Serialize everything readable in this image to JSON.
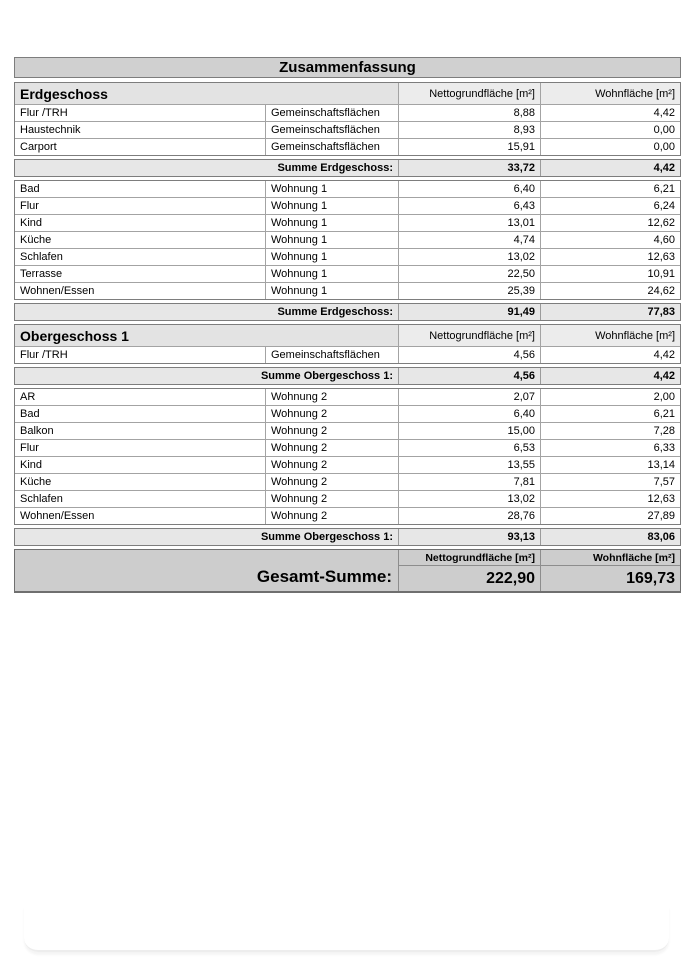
{
  "document": {
    "title": "Zusammenfassung",
    "columns": {
      "netto": "Nettogrundfläche [m²]",
      "wohn": "Wohnfläche [m²]"
    },
    "sections": {
      "eg": {
        "name": "Erdgeschoss",
        "common_rows": [
          [
            "Flur /TRH",
            "Gemeinschaftsflächen",
            "8,88",
            "4,42"
          ],
          [
            "Haustechnik",
            "Gemeinschaftsflächen",
            "8,93",
            "0,00"
          ],
          [
            "Carport",
            "Gemeinschaftsflächen",
            "15,91",
            "0,00"
          ]
        ],
        "sum1": {
          "label": "Summe Erdgeschoss:",
          "netto": "33,72",
          "wohn": "4,42"
        },
        "unit_rows": [
          [
            "Bad",
            "Wohnung 1",
            "6,40",
            "6,21"
          ],
          [
            "Flur",
            "Wohnung 1",
            "6,43",
            "6,24"
          ],
          [
            "Kind",
            "Wohnung 1",
            "13,01",
            "12,62"
          ],
          [
            "Küche",
            "Wohnung 1",
            "4,74",
            "4,60"
          ],
          [
            "Schlafen",
            "Wohnung 1",
            "13,02",
            "12,63"
          ],
          [
            "Terrasse",
            "Wohnung 1",
            "22,50",
            "10,91"
          ],
          [
            "Wohnen/Essen",
            "Wohnung 1",
            "25,39",
            "24,62"
          ]
        ],
        "sum2": {
          "label": "Summe Erdgeschoss:",
          "netto": "91,49",
          "wohn": "77,83"
        }
      },
      "og1": {
        "name": "Obergeschoss 1",
        "common_rows": [
          [
            "Flur /TRH",
            "Gemeinschaftsflächen",
            "4,56",
            "4,42"
          ]
        ],
        "sum1": {
          "label": "Summe Obergeschoss 1:",
          "netto": "4,56",
          "wohn": "4,42"
        },
        "unit_rows": [
          [
            "AR",
            "Wohnung 2",
            "2,07",
            "2,00"
          ],
          [
            "Bad",
            "Wohnung 2",
            "6,40",
            "6,21"
          ],
          [
            "Balkon",
            "Wohnung 2",
            "15,00",
            "7,28"
          ],
          [
            "Flur",
            "Wohnung 2",
            "6,53",
            "6,33"
          ],
          [
            "Kind",
            "Wohnung 2",
            "13,55",
            "13,14"
          ],
          [
            "Küche",
            "Wohnung 2",
            "7,81",
            "7,57"
          ],
          [
            "Schlafen",
            "Wohnung 2",
            "13,02",
            "12,63"
          ],
          [
            "Wohnen/Essen",
            "Wohnung 2",
            "28,76",
            "27,89"
          ]
        ],
        "sum2": {
          "label": "Summe Obergeschoss 1:",
          "netto": "93,13",
          "wohn": "83,06"
        }
      }
    },
    "grand_total": {
      "label": "Gesamt-Summe:",
      "netto": "222,90",
      "wohn": "169,73"
    }
  }
}
